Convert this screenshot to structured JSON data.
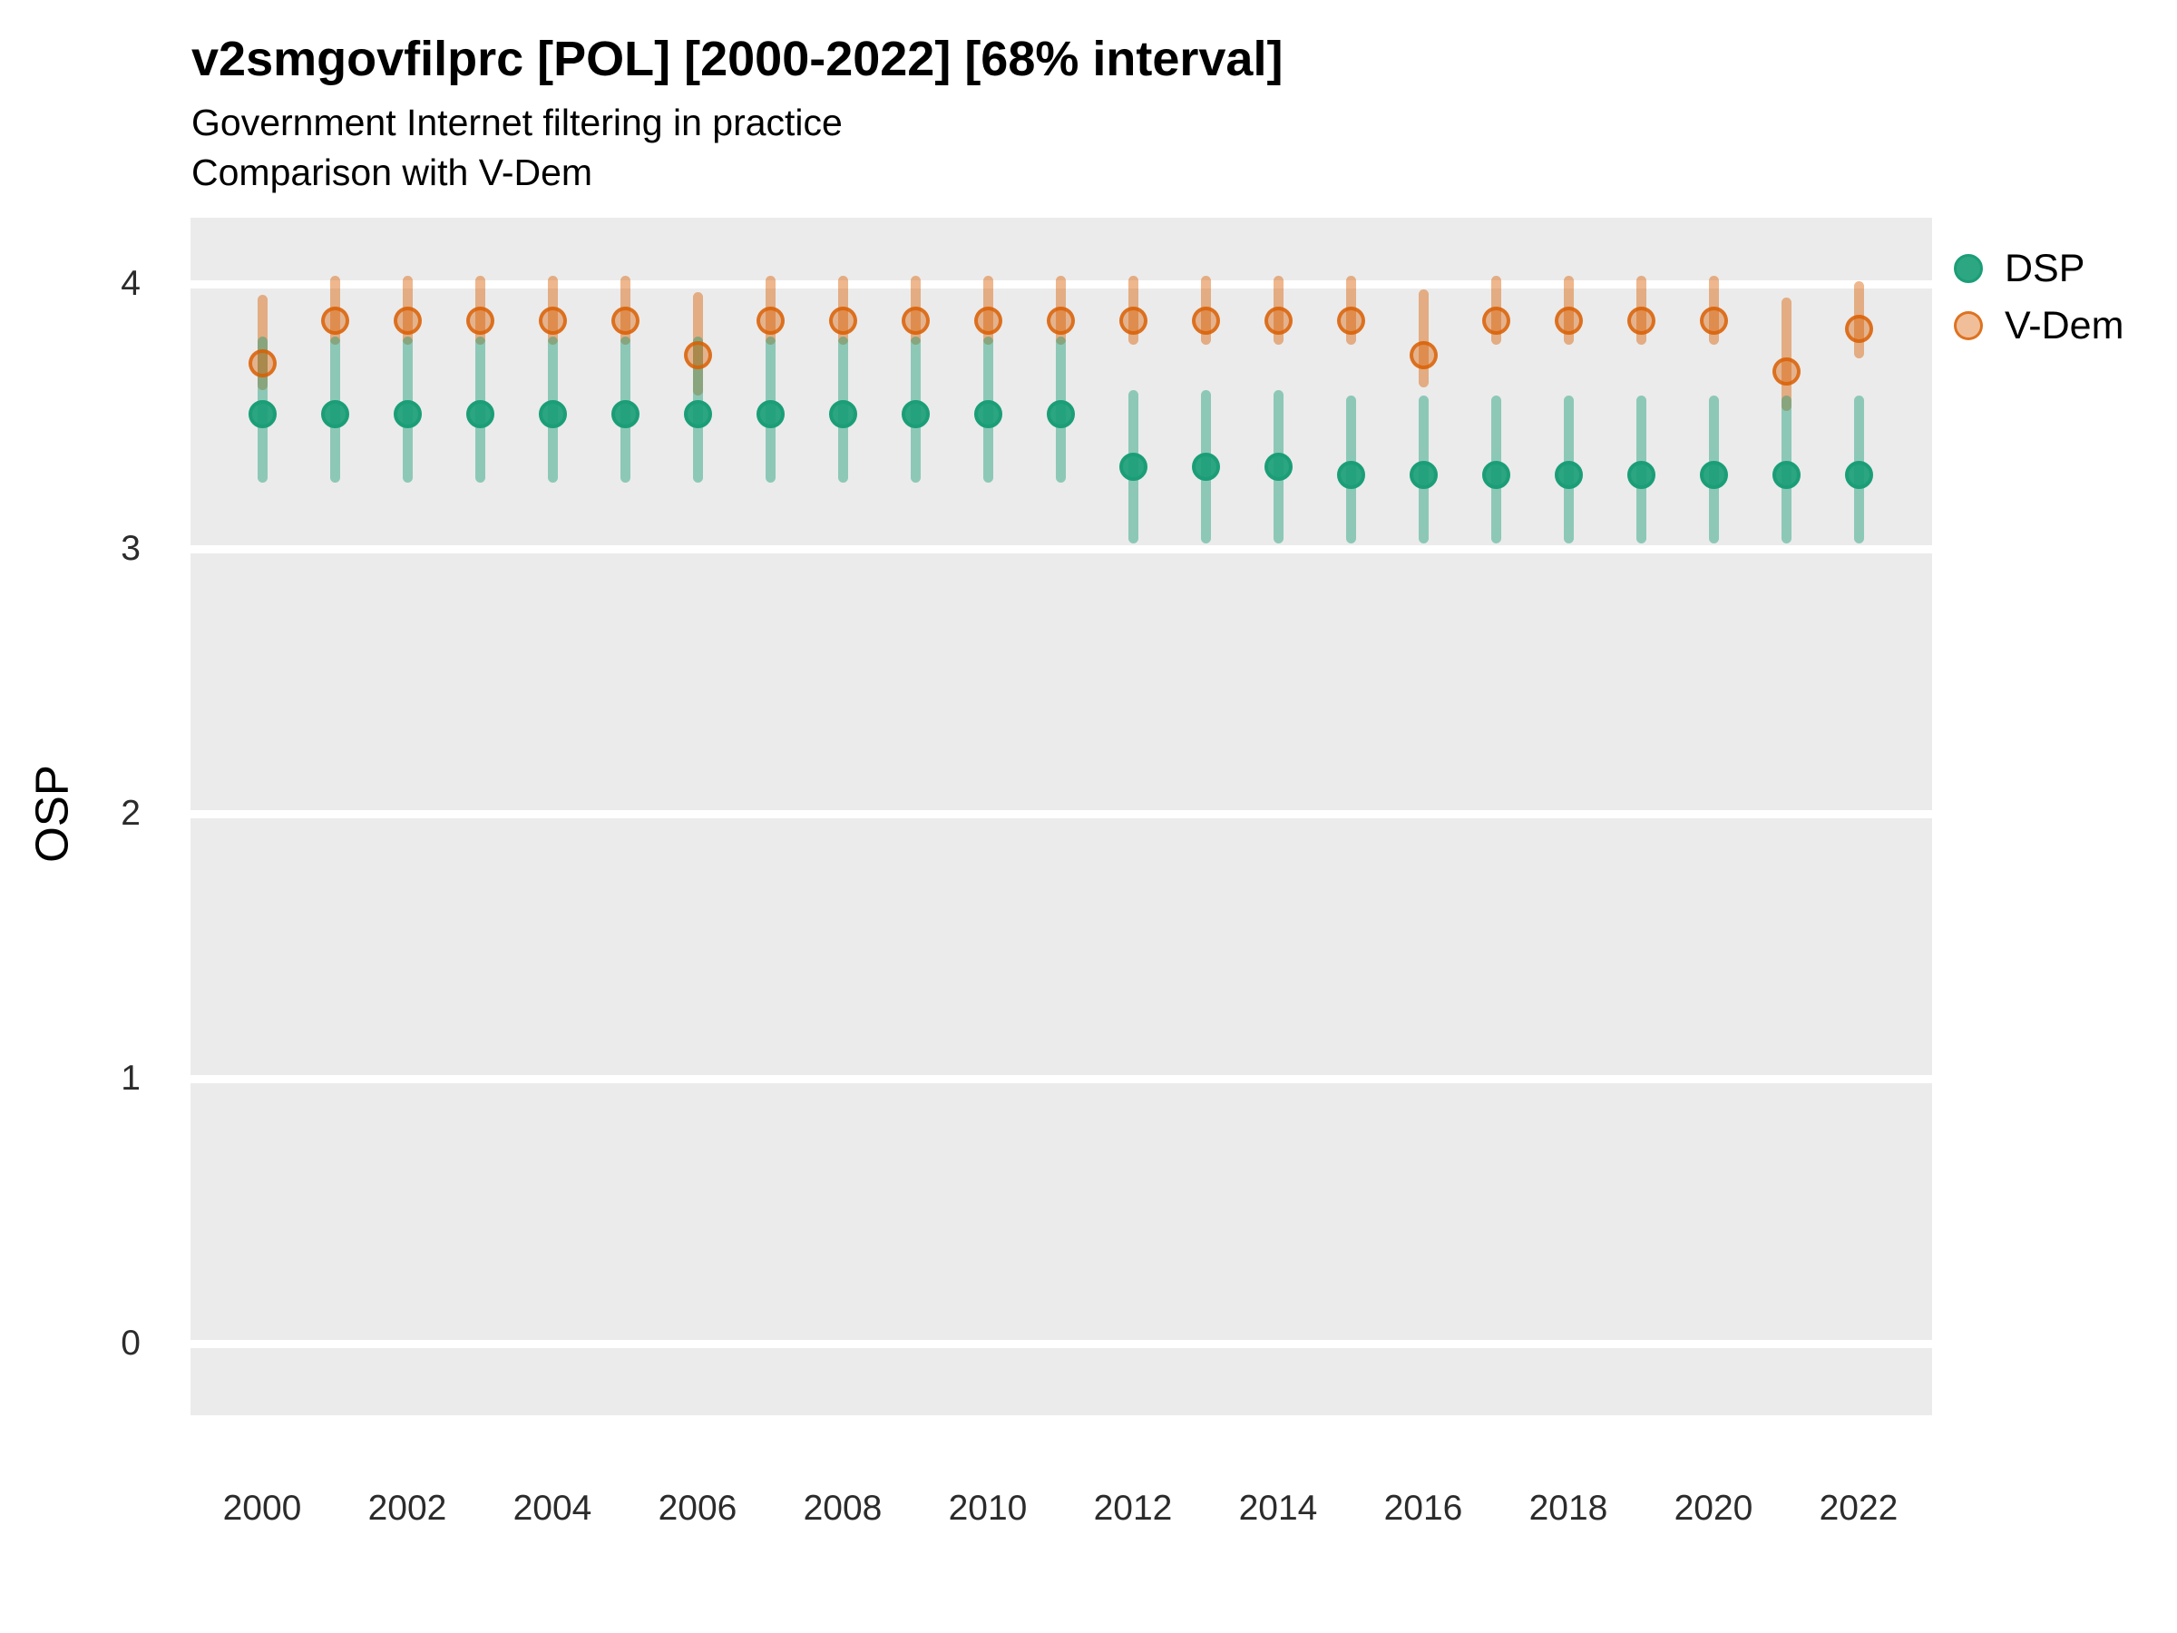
{
  "header": {
    "title": "v2smgovfilprc [POL] [2000-2022] [68% interval]",
    "subtitle1": "Government Internet filtering in practice",
    "subtitle2": "Comparison with V-Dem"
  },
  "y_axis": {
    "label": "OSP"
  },
  "legend": {
    "items": [
      {
        "label": "DSP"
      },
      {
        "label": "V-Dem"
      }
    ]
  },
  "colors": {
    "panel_bg": "#ebebeb",
    "grid": "#ffffff",
    "dsp_base": "#1B9E77",
    "vdem_base": "#D95F02",
    "text": "#000000",
    "tick_text": "#2b2b2b"
  },
  "chart_data": {
    "type": "scatter",
    "title": "v2smgovfilprc [POL] [2000-2022] [68% interval]",
    "subtitle": "Government Internet filtering in practice — Comparison with V-Dem",
    "xlabel": "",
    "ylabel": "OSP",
    "ylim": [
      -0.26,
      4.25
    ],
    "y_ticks": [
      0,
      1,
      2,
      3,
      4
    ],
    "x_tick_years": [
      2000,
      2002,
      2004,
      2006,
      2008,
      2010,
      2012,
      2014,
      2016,
      2018,
      2020,
      2022
    ],
    "grid": "horizontal-major-only",
    "legend_position": "right",
    "interval_note": "68% credible interval shown as vertical line ranges",
    "x": [
      2000,
      2001,
      2002,
      2003,
      2004,
      2005,
      2006,
      2007,
      2008,
      2009,
      2010,
      2011,
      2012,
      2013,
      2014,
      2015,
      2016,
      2017,
      2018,
      2019,
      2020,
      2021,
      2022
    ],
    "series": [
      {
        "name": "DSP",
        "point_fill": "rgba(27,158,119,0.92)",
        "point_border": "#1b9e77",
        "bar_color": "rgba(27,158,119,0.45)",
        "values": [
          3.51,
          3.51,
          3.51,
          3.51,
          3.51,
          3.51,
          3.51,
          3.51,
          3.51,
          3.51,
          3.51,
          3.51,
          3.31,
          3.31,
          3.31,
          3.28,
          3.28,
          3.28,
          3.28,
          3.28,
          3.28,
          3.28,
          3.28
        ],
        "lo": [
          3.25,
          3.25,
          3.25,
          3.25,
          3.25,
          3.25,
          3.25,
          3.25,
          3.25,
          3.25,
          3.25,
          3.25,
          3.02,
          3.02,
          3.02,
          3.02,
          3.02,
          3.02,
          3.02,
          3.02,
          3.02,
          3.02,
          3.02
        ],
        "hi": [
          3.8,
          3.8,
          3.8,
          3.8,
          3.8,
          3.8,
          3.8,
          3.8,
          3.8,
          3.8,
          3.8,
          3.8,
          3.6,
          3.6,
          3.6,
          3.58,
          3.58,
          3.58,
          3.58,
          3.58,
          3.58,
          3.58,
          3.58
        ]
      },
      {
        "name": "V-Dem",
        "point_fill": "rgba(217,95,2,0.40)",
        "point_border": "rgba(217,95,2,0.80)",
        "bar_color": "rgba(217,95,2,0.45)",
        "values": [
          3.7,
          3.86,
          3.86,
          3.86,
          3.86,
          3.86,
          3.73,
          3.86,
          3.86,
          3.86,
          3.86,
          3.86,
          3.86,
          3.86,
          3.86,
          3.86,
          3.73,
          3.86,
          3.86,
          3.86,
          3.86,
          3.67,
          3.83
        ],
        "lo": [
          3.6,
          3.77,
          3.77,
          3.77,
          3.77,
          3.77,
          3.58,
          3.77,
          3.77,
          3.77,
          3.77,
          3.77,
          3.77,
          3.77,
          3.77,
          3.77,
          3.61,
          3.77,
          3.77,
          3.77,
          3.77,
          3.52,
          3.72
        ],
        "hi": [
          3.96,
          4.03,
          4.03,
          4.03,
          4.03,
          4.03,
          3.97,
          4.03,
          4.03,
          4.03,
          4.03,
          4.03,
          4.03,
          4.03,
          4.03,
          4.03,
          3.98,
          4.03,
          4.03,
          4.03,
          4.03,
          3.95,
          4.01
        ]
      }
    ]
  }
}
